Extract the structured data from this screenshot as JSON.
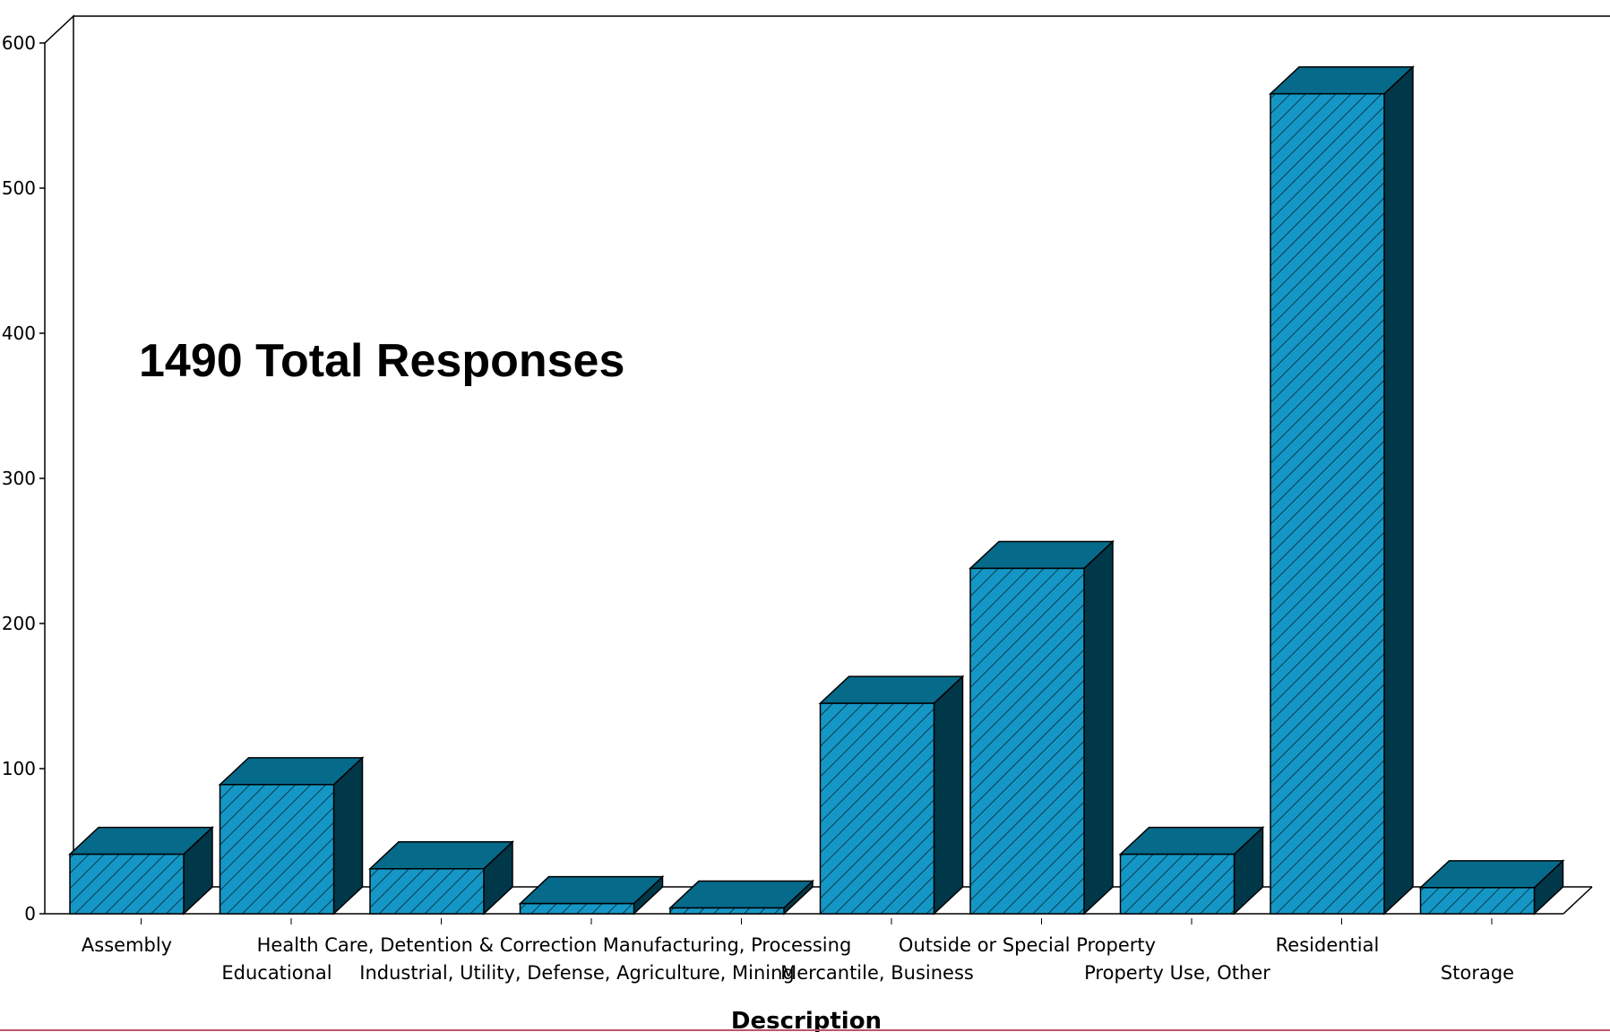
{
  "chart_data": {
    "type": "bar",
    "title": "",
    "xlabel": "Description",
    "ylabel": "",
    "annotation": "1490 Total Responses",
    "categories": [
      "Assembly",
      "Educational",
      "Health Care, Detention & Correction",
      "Industrial, Utility, Defense, Agriculture, Mining",
      "Manufacturing, Processing",
      "Mercantile, Business",
      "Outside or Special Property",
      "Property Use, Other",
      "Residential",
      "Storage"
    ],
    "values": [
      41,
      89,
      31,
      7,
      4,
      145,
      238,
      41,
      565,
      18
    ],
    "ylim": [
      0,
      600
    ],
    "yticks": [
      0,
      100,
      200,
      300,
      400,
      500,
      600
    ],
    "grid": false,
    "legend": "none",
    "colors": {
      "bar_front": "#1597c6",
      "bar_top": "#066a8a",
      "bar_side": "#00384a",
      "hatch": "#0b3a4f",
      "frame": "#000000",
      "bottom_rule": "#c0506e"
    }
  }
}
